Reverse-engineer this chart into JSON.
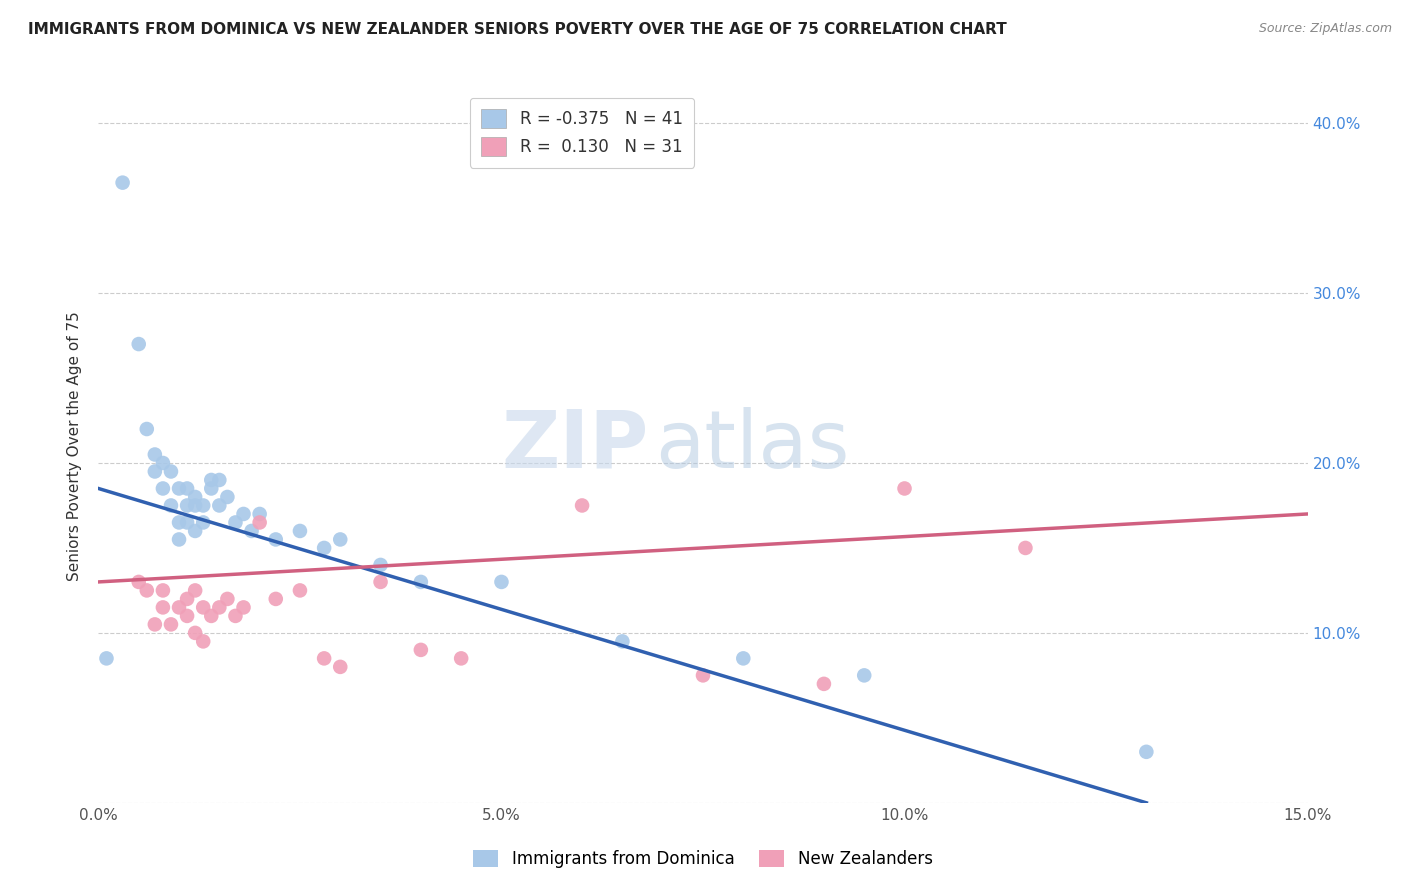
{
  "title": "IMMIGRANTS FROM DOMINICA VS NEW ZEALANDER SENIORS POVERTY OVER THE AGE OF 75 CORRELATION CHART",
  "source": "Source: ZipAtlas.com",
  "ylabel": "Seniors Poverty Over the Age of 75",
  "xlim": [
    0.0,
    0.15
  ],
  "ylim": [
    0.0,
    0.42
  ],
  "xticks": [
    0.0,
    0.05,
    0.1,
    0.15
  ],
  "xticklabels": [
    "0.0%",
    "5.0%",
    "10.0%",
    "15.0%"
  ],
  "yticks_left": [
    0.0,
    0.1,
    0.2,
    0.3,
    0.4
  ],
  "yticklabels_left": [
    "",
    "",
    "",
    "",
    ""
  ],
  "yticks_right": [
    0.1,
    0.2,
    0.3,
    0.4
  ],
  "yticklabels_right": [
    "10.0%",
    "20.0%",
    "30.0%",
    "40.0%"
  ],
  "legend_r1": "R = -0.375",
  "legend_n1": "N = 41",
  "legend_r2": "R =  0.130",
  "legend_n2": "N = 31",
  "blue_color": "#a8c8e8",
  "pink_color": "#f0a0b8",
  "blue_line_color": "#3060b0",
  "pink_line_color": "#d06080",
  "watermark_zip": "ZIP",
  "watermark_atlas": "atlas",
  "blue_scatter_x": [
    0.001,
    0.003,
    0.005,
    0.006,
    0.007,
    0.007,
    0.008,
    0.008,
    0.009,
    0.009,
    0.01,
    0.01,
    0.01,
    0.011,
    0.011,
    0.011,
    0.012,
    0.012,
    0.012,
    0.013,
    0.013,
    0.014,
    0.014,
    0.015,
    0.015,
    0.016,
    0.017,
    0.018,
    0.019,
    0.02,
    0.022,
    0.025,
    0.028,
    0.03,
    0.035,
    0.04,
    0.05,
    0.065,
    0.08,
    0.095,
    0.13
  ],
  "blue_scatter_y": [
    0.085,
    0.365,
    0.27,
    0.22,
    0.195,
    0.205,
    0.2,
    0.185,
    0.175,
    0.195,
    0.185,
    0.165,
    0.155,
    0.175,
    0.185,
    0.165,
    0.175,
    0.16,
    0.18,
    0.165,
    0.175,
    0.19,
    0.185,
    0.175,
    0.19,
    0.18,
    0.165,
    0.17,
    0.16,
    0.17,
    0.155,
    0.16,
    0.15,
    0.155,
    0.14,
    0.13,
    0.13,
    0.095,
    0.085,
    0.075,
    0.03
  ],
  "pink_scatter_x": [
    0.005,
    0.006,
    0.007,
    0.008,
    0.008,
    0.009,
    0.01,
    0.011,
    0.011,
    0.012,
    0.012,
    0.013,
    0.013,
    0.014,
    0.015,
    0.016,
    0.017,
    0.018,
    0.02,
    0.022,
    0.025,
    0.028,
    0.03,
    0.035,
    0.04,
    0.045,
    0.06,
    0.075,
    0.09,
    0.1,
    0.115
  ],
  "pink_scatter_y": [
    0.13,
    0.125,
    0.105,
    0.125,
    0.115,
    0.105,
    0.115,
    0.11,
    0.12,
    0.125,
    0.1,
    0.115,
    0.095,
    0.11,
    0.115,
    0.12,
    0.11,
    0.115,
    0.165,
    0.12,
    0.125,
    0.085,
    0.08,
    0.13,
    0.09,
    0.085,
    0.175,
    0.075,
    0.07,
    0.185,
    0.15
  ],
  "blue_trendline_x": [
    0.0,
    0.13
  ],
  "blue_trendline_y": [
    0.185,
    0.0
  ],
  "pink_trendline_x": [
    0.0,
    0.15
  ],
  "pink_trendline_y": [
    0.13,
    0.17
  ],
  "background_color": "#ffffff",
  "grid_color": "#cccccc",
  "cat_label1": "Immigrants from Dominica",
  "cat_label2": "New Zealanders"
}
